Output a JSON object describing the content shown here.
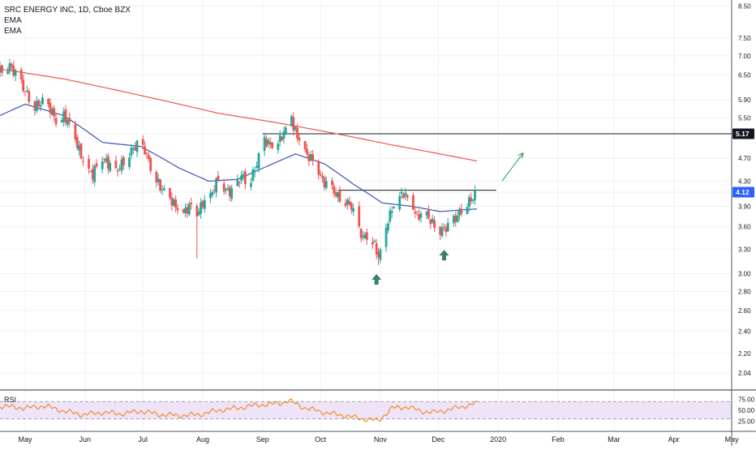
{
  "legend": {
    "symbol_line": "SRC ENERGY INC, 1D, Cboe BZX",
    "indicator_1": "EMA",
    "indicator_2": "EMA"
  },
  "rsi": {
    "label": "RSI",
    "levels": [
      70,
      30
    ],
    "tick_labels": [
      "75.00",
      "50.00",
      "25.00"
    ]
  },
  "colors": {
    "up": "#26a69a",
    "down": "#ef5350",
    "ema_fast": "#3f51b5",
    "ema_slow": "#ef5350",
    "rsi_line": "#f57c00",
    "rsi_band": "#efe3f8",
    "arrow_up_marker": "#3a7d73",
    "projection": "#1e9e4a",
    "label_black": "#131722",
    "label_blue": "#2962ff"
  },
  "chart_data": {
    "type": "candlestick",
    "y_scale": "log",
    "ylim": [
      1.92,
      8.7
    ],
    "y_ticks": [
      8.5,
      7.5,
      7.0,
      6.5,
      5.9,
      5.5,
      5.17,
      4.7,
      4.3,
      4.12,
      3.9,
      3.6,
      3.3,
      3.0,
      2.8,
      2.6,
      2.4,
      2.2,
      2.04
    ],
    "y_tick_labels": [
      "8.50",
      "7.50",
      "7.00",
      "6.50",
      "5.90",
      "5.50",
      "",
      "4.70",
      "4.30",
      "",
      "3.90",
      "3.60",
      "3.30",
      "3.00",
      "2.80",
      "2.60",
      "2.40",
      "2.20",
      "2.04"
    ],
    "x_tick_labels": [
      {
        "label": "May",
        "day": 0
      },
      {
        "label": "Jun",
        "day": 31
      },
      {
        "label": "Jul",
        "day": 61
      },
      {
        "label": "Aug",
        "day": 92
      },
      {
        "label": "Sep",
        "day": 123
      },
      {
        "label": "Oct",
        "day": 153
      },
      {
        "label": "Nov",
        "day": 184
      },
      {
        "label": "Dec",
        "day": 214
      },
      {
        "label": "2020",
        "day": 245
      },
      {
        "label": "Feb",
        "day": 276
      },
      {
        "label": "Mar",
        "day": 305
      },
      {
        "label": "Apr",
        "day": 336
      },
      {
        "label": "May",
        "day": 366
      }
    ],
    "x_start_date": "2019-05-01",
    "price_labels": [
      {
        "value": 5.17,
        "text": "5.17",
        "style": "black"
      },
      {
        "value": 4.12,
        "text": "4.12",
        "style": "blue"
      }
    ],
    "horizontal_lines": [
      {
        "value": 5.17,
        "from_day": 123,
        "to_day": 400
      },
      {
        "value": 4.15,
        "from_day": 162,
        "to_day": 244
      }
    ],
    "anchor_closes": [
      {
        "day": -13,
        "close": 6.6
      },
      {
        "day": -8,
        "close": 6.75
      },
      {
        "day": -4,
        "close": 6.45
      },
      {
        "day": 0,
        "close": 6.1
      },
      {
        "day": 5,
        "close": 5.75
      },
      {
        "day": 9,
        "close": 5.85
      },
      {
        "day": 13,
        "close": 5.7
      },
      {
        "day": 17,
        "close": 5.35
      },
      {
        "day": 20,
        "close": 5.55
      },
      {
        "day": 24,
        "close": 5.3
      },
      {
        "day": 27,
        "close": 4.95
      },
      {
        "day": 31,
        "close": 4.55
      },
      {
        "day": 35,
        "close": 4.4
      },
      {
        "day": 39,
        "close": 4.75
      },
      {
        "day": 43,
        "close": 4.6
      },
      {
        "day": 47,
        "close": 4.45
      },
      {
        "day": 50,
        "close": 4.6
      },
      {
        "day": 54,
        "close": 4.8
      },
      {
        "day": 58,
        "close": 4.95
      },
      {
        "day": 62,
        "close": 4.85
      },
      {
        "day": 66,
        "close": 4.45
      },
      {
        "day": 70,
        "close": 4.2
      },
      {
        "day": 74,
        "close": 4.05
      },
      {
        "day": 78,
        "close": 3.9
      },
      {
        "day": 82,
        "close": 3.8
      },
      {
        "day": 86,
        "close": 3.92
      },
      {
        "day": 89,
        "close": 3.78
      },
      {
        "day": 92,
        "close": 3.95
      },
      {
        "day": 96,
        "close": 4.05
      },
      {
        "day": 100,
        "close": 4.35
      },
      {
        "day": 104,
        "close": 4.15
      },
      {
        "day": 108,
        "close": 4.1
      },
      {
        "day": 112,
        "close": 4.4
      },
      {
        "day": 116,
        "close": 4.25
      },
      {
        "day": 120,
        "close": 4.6
      },
      {
        "day": 124,
        "close": 5.05
      },
      {
        "day": 127,
        "close": 4.95
      },
      {
        "day": 131,
        "close": 5.0
      },
      {
        "day": 135,
        "close": 5.25
      },
      {
        "day": 137,
        "close": 5.8
      },
      {
        "day": 139,
        "close": 5.3
      },
      {
        "day": 142,
        "close": 5.05
      },
      {
        "day": 146,
        "close": 4.75
      },
      {
        "day": 150,
        "close": 4.65
      },
      {
        "day": 154,
        "close": 4.3
      },
      {
        "day": 158,
        "close": 4.2
      },
      {
        "day": 162,
        "close": 4.05
      },
      {
        "day": 165,
        "close": 4.0
      },
      {
        "day": 169,
        "close": 3.9
      },
      {
        "day": 172,
        "close": 3.6
      },
      {
        "day": 175,
        "close": 3.45
      },
      {
        "day": 178,
        "close": 3.5
      },
      {
        "day": 181,
        "close": 3.35
      },
      {
        "day": 183,
        "close": 3.2
      },
      {
        "day": 185,
        "close": 3.3
      },
      {
        "day": 188,
        "close": 3.7
      },
      {
        "day": 192,
        "close": 4.0
      },
      {
        "day": 196,
        "close": 4.1
      },
      {
        "day": 200,
        "close": 3.95
      },
      {
        "day": 203,
        "close": 3.75
      },
      {
        "day": 207,
        "close": 3.8
      },
      {
        "day": 211,
        "close": 3.65
      },
      {
        "day": 215,
        "close": 3.55
      },
      {
        "day": 219,
        "close": 3.6
      },
      {
        "day": 223,
        "close": 3.72
      },
      {
        "day": 227,
        "close": 3.9
      },
      {
        "day": 231,
        "close": 4.0
      },
      {
        "day": 234,
        "close": 4.12
      }
    ],
    "ema_fast": [
      {
        "day": -13,
        "value": 5.55
      },
      {
        "day": 0,
        "value": 5.8
      },
      {
        "day": 20,
        "value": 5.55
      },
      {
        "day": 40,
        "value": 5.0
      },
      {
        "day": 60,
        "value": 4.92
      },
      {
        "day": 80,
        "value": 4.52
      },
      {
        "day": 95,
        "value": 4.3
      },
      {
        "day": 110,
        "value": 4.33
      },
      {
        "day": 125,
        "value": 4.55
      },
      {
        "day": 140,
        "value": 4.78
      },
      {
        "day": 155,
        "value": 4.6
      },
      {
        "day": 170,
        "value": 4.25
      },
      {
        "day": 185,
        "value": 3.95
      },
      {
        "day": 200,
        "value": 3.9
      },
      {
        "day": 215,
        "value": 3.82
      },
      {
        "day": 234,
        "value": 3.86
      }
    ],
    "ema_slow": [
      {
        "day": -13,
        "value": 6.65
      },
      {
        "day": 20,
        "value": 6.4
      },
      {
        "day": 60,
        "value": 6.0
      },
      {
        "day": 100,
        "value": 5.6
      },
      {
        "day": 130,
        "value": 5.4
      },
      {
        "day": 160,
        "value": 5.18
      },
      {
        "day": 190,
        "value": 4.95
      },
      {
        "day": 215,
        "value": 4.78
      },
      {
        "day": 234,
        "value": 4.65
      }
    ],
    "markers": [
      {
        "type": "arrow-up",
        "day": 182,
        "value": 2.93
      },
      {
        "type": "arrow-up",
        "day": 217,
        "value": 3.22
      }
    ],
    "projection_arrow": {
      "from_day": 247,
      "from_value": 4.3,
      "to_day": 258,
      "to_value": 4.8
    },
    "rsi_series": [
      {
        "day": -13,
        "value": 60
      },
      {
        "day": 0,
        "value": 55
      },
      {
        "day": 10,
        "value": 60
      },
      {
        "day": 20,
        "value": 48
      },
      {
        "day": 30,
        "value": 40
      },
      {
        "day": 40,
        "value": 45
      },
      {
        "day": 50,
        "value": 42
      },
      {
        "day": 60,
        "value": 48
      },
      {
        "day": 70,
        "value": 40
      },
      {
        "day": 80,
        "value": 38
      },
      {
        "day": 90,
        "value": 40
      },
      {
        "day": 100,
        "value": 50
      },
      {
        "day": 110,
        "value": 55
      },
      {
        "day": 120,
        "value": 62
      },
      {
        "day": 130,
        "value": 65
      },
      {
        "day": 137,
        "value": 72
      },
      {
        "day": 145,
        "value": 55
      },
      {
        "day": 155,
        "value": 45
      },
      {
        "day": 165,
        "value": 38
      },
      {
        "day": 175,
        "value": 30
      },
      {
        "day": 183,
        "value": 26
      },
      {
        "day": 190,
        "value": 55
      },
      {
        "day": 198,
        "value": 58
      },
      {
        "day": 205,
        "value": 48
      },
      {
        "day": 212,
        "value": 45
      },
      {
        "day": 220,
        "value": 52
      },
      {
        "day": 228,
        "value": 60
      },
      {
        "day": 234,
        "value": 66
      }
    ]
  }
}
